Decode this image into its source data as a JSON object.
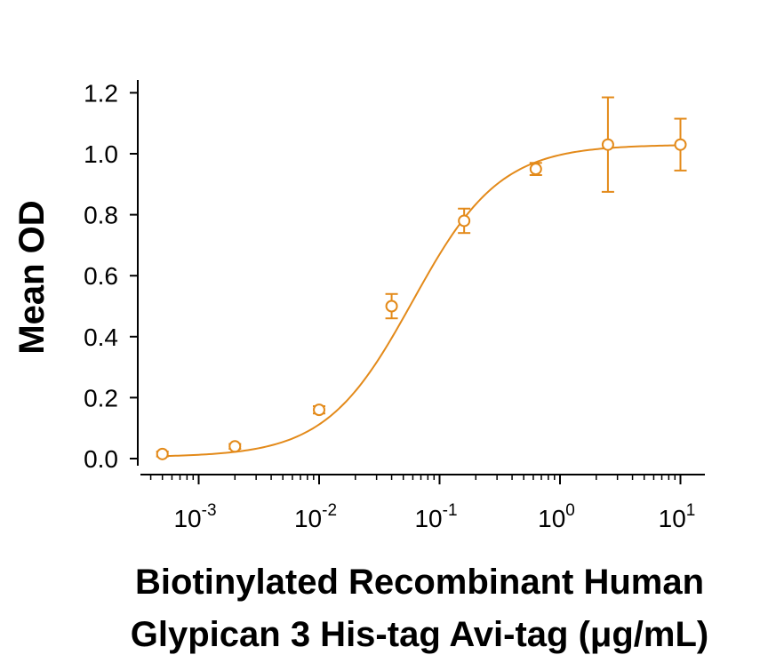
{
  "chart_data": {
    "type": "scatter",
    "xlabel_lines": [
      "Biotinylated Recombinant Human",
      "Glypican 3 His-tag Avi-tag (μg/mL)"
    ],
    "ylabel": "Mean OD",
    "x_scale": "log",
    "xlim": [
      0.0003,
      18
    ],
    "ylim": [
      -0.05,
      1.25
    ],
    "y_ticks": [
      "0.0",
      "0.2",
      "0.4",
      "0.6",
      "0.8",
      "1.0",
      "1.2"
    ],
    "x_ticks": [
      {
        "base": "10",
        "exp": "-3",
        "value": 0.001
      },
      {
        "base": "10",
        "exp": "-2",
        "value": 0.01
      },
      {
        "base": "10",
        "exp": "-1",
        "value": 0.1
      },
      {
        "base": "10",
        "exp": "0",
        "value": 1
      },
      {
        "base": "10",
        "exp": "1",
        "value": 10
      }
    ],
    "color": "#E38A1A",
    "series": [
      {
        "x": [
          0.0005,
          0.002,
          0.01,
          0.04,
          0.16,
          0.63,
          2.5,
          10
        ],
        "y": [
          0.015,
          0.04,
          0.16,
          0.5,
          0.78,
          0.95,
          1.03,
          1.03
        ],
        "err": [
          0.008,
          0.008,
          0.012,
          0.04,
          0.04,
          0.02,
          0.155,
          0.085
        ]
      }
    ],
    "fit": {
      "type": "4PL",
      "bottom": 0.005,
      "top": 1.03,
      "ec50": 0.06,
      "hill": 1.2
    },
    "grid": false
  }
}
